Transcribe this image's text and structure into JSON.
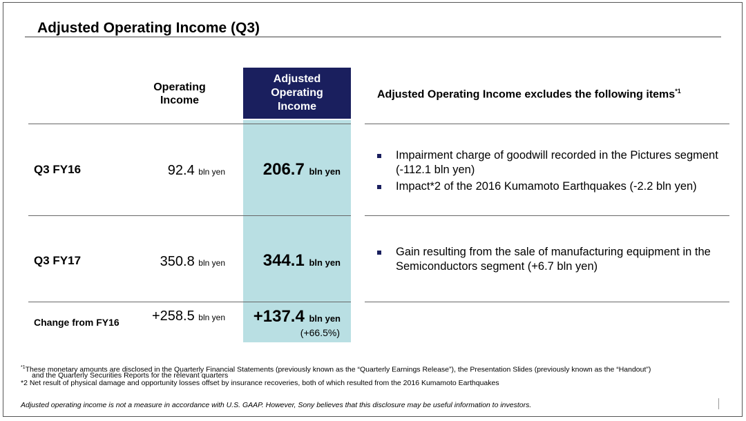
{
  "title": "Adjusted Operating Income (Q3)",
  "headers": {
    "operating": "Operating Income",
    "adjusted": "Adjusted Operating Income",
    "excludes": "Adjusted Operating Income excludes the following items",
    "excludes_note": "*1"
  },
  "rows": [
    {
      "label": "Q3 FY16",
      "operating": "92.4",
      "adjusted": "206.7",
      "unit": "bln yen",
      "bullets": [
        "Impairment charge of goodwill recorded in the Pictures segment (-112.1 bln yen)",
        "Impact*2 of the 2016 Kumamoto Earthquakes (-2.2 bln yen)"
      ]
    },
    {
      "label": "Q3 FY17",
      "operating": "350.8",
      "adjusted": "344.1",
      "unit": "bln yen",
      "bullets": [
        "Gain resulting from the sale of manufacturing equipment in the Semiconductors segment (+6.7 bln yen)"
      ]
    },
    {
      "label": "Change from FY16",
      "operating": "+258.5",
      "adjusted": "+137.4",
      "unit": "bln yen",
      "pct": "(+66.5%)"
    }
  ],
  "footnotes": {
    "fn1_mark": "*1",
    "fn1": "These monetary amounts are disclosed in the Quarterly Financial Statements (previously known as the “Quarterly Earnings Release”), the Presentation Slides (previously known as the “Handout”)",
    "fn1_cont": "and the Quarterly Securities Reports for the relevant quarters",
    "fn2": "*2 Net result of physical damage and opportunity losses offset by insurance recoveries, both of which resulted from the 2016 Kumamoto Earthquakes"
  },
  "disclaimer": "Adjusted operating income is not a measure in accordance with U.S. GAAP.  However, Sony believes that this disclosure may be useful information to investors."
}
